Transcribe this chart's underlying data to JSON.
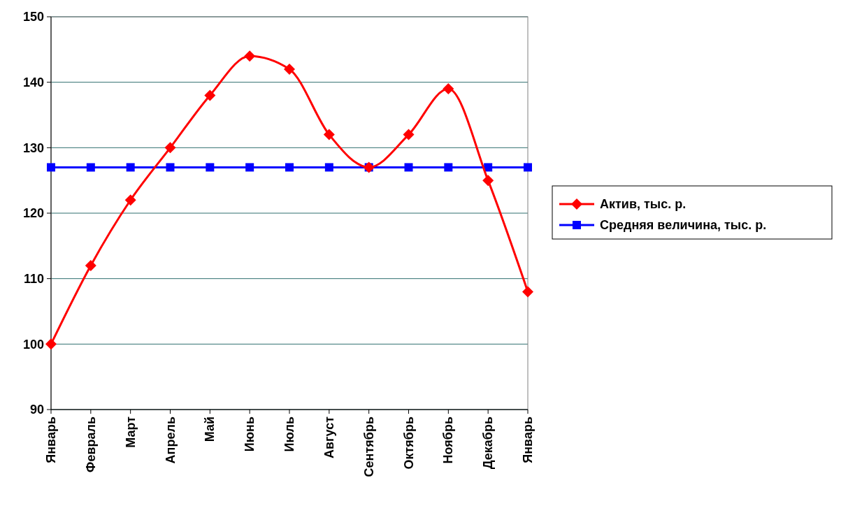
{
  "chart_data": {
    "type": "line",
    "categories": [
      "Январь",
      "Февраль",
      "Март",
      "Апрель",
      "Май",
      "Июнь",
      "Июль",
      "Август",
      "Сентябрь",
      "Октябрь",
      "Ноябрь",
      "Декабрь",
      "Январь"
    ],
    "series": [
      {
        "name": "Актив, тыс. р.",
        "color": "#ff0000",
        "marker": "diamond",
        "values": [
          100,
          112,
          122,
          130,
          138,
          144,
          142,
          132,
          127,
          132,
          139,
          125,
          108
        ]
      },
      {
        "name": "Средняя величина, тыс. р.",
        "color": "#0000ff",
        "marker": "square",
        "values": [
          127,
          127,
          127,
          127,
          127,
          127,
          127,
          127,
          127,
          127,
          127,
          127,
          127
        ]
      }
    ],
    "ylim": [
      90,
      150
    ],
    "yticks": [
      90,
      100,
      110,
      120,
      130,
      140,
      150
    ],
    "grid": "y",
    "legend": "right"
  }
}
